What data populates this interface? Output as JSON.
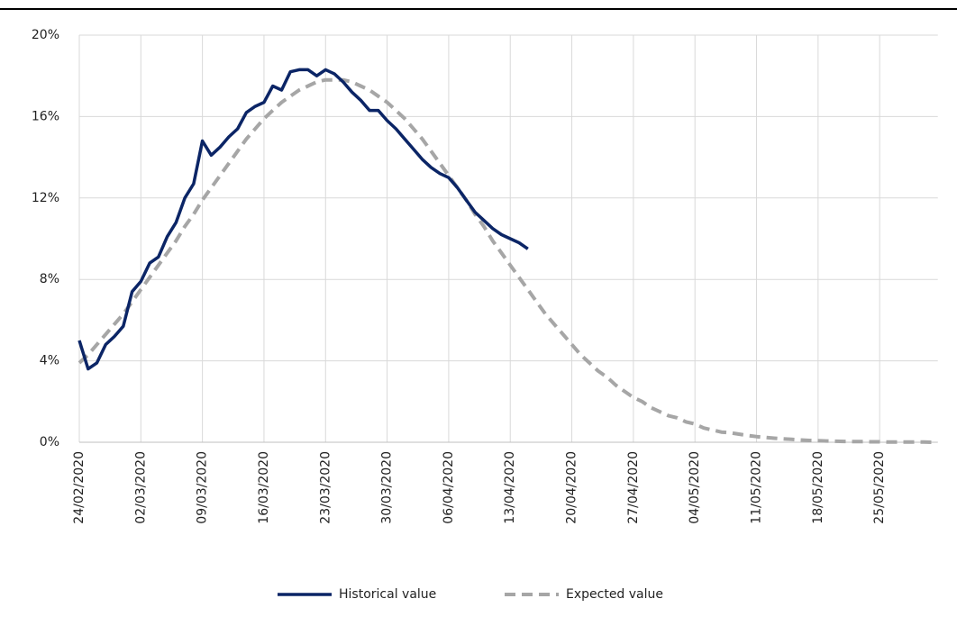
{
  "chart_data": {
    "type": "line",
    "x": [
      "24/02/2020",
      null,
      null,
      null,
      null,
      null,
      null,
      "02/03/2020",
      null,
      null,
      null,
      null,
      null,
      null,
      "09/03/2020",
      null,
      null,
      null,
      null,
      null,
      null,
      "16/03/2020",
      null,
      null,
      null,
      null,
      null,
      null,
      "23/03/2020",
      null,
      null,
      null,
      null,
      null,
      null,
      "30/03/2020",
      null,
      null,
      null,
      null,
      null,
      null,
      "06/04/2020",
      null,
      null,
      null,
      null,
      null,
      null,
      "13/04/2020",
      null,
      null,
      null,
      null,
      null,
      null,
      "20/04/2020",
      null,
      null,
      null,
      null,
      null,
      null,
      "27/04/2020",
      null,
      null,
      null,
      null,
      null,
      null,
      "04/05/2020",
      null,
      null,
      null,
      null,
      null,
      null,
      "11/05/2020",
      null,
      null,
      null,
      null,
      null,
      null,
      "18/05/2020",
      null,
      null,
      null,
      null,
      null,
      null,
      "25/05/2020",
      null,
      null,
      null,
      null,
      null,
      null
    ],
    "series": [
      {
        "name": "Historical value",
        "color": "#0b2566",
        "dash": false,
        "values": [
          5.0,
          3.6,
          3.9,
          4.8,
          5.2,
          5.7,
          7.4,
          7.9,
          8.8,
          9.1,
          10.1,
          10.8,
          12.0,
          12.7,
          14.8,
          14.1,
          14.5,
          15.0,
          15.4,
          16.2,
          16.5,
          16.7,
          17.5,
          17.3,
          18.2,
          18.3,
          18.3,
          18.0,
          18.3,
          18.1,
          17.7,
          17.2,
          16.8,
          16.3,
          16.3,
          15.8,
          15.4,
          14.9,
          14.4,
          13.9,
          13.5,
          13.2,
          13.0,
          12.5,
          11.9,
          11.3,
          10.9,
          10.5,
          10.2,
          10.0,
          9.8,
          9.5,
          null,
          null,
          null,
          null,
          null,
          null,
          null,
          null,
          null,
          null,
          null,
          null,
          null,
          null,
          null,
          null,
          null,
          null,
          null,
          null,
          null,
          null,
          null,
          null,
          null,
          null,
          null,
          null,
          null,
          null,
          null,
          null,
          null,
          null,
          null,
          null,
          null,
          null,
          null,
          null,
          null,
          null,
          null,
          null,
          null,
          null
        ]
      },
      {
        "name": "Expected value",
        "color": "#a6a6a6",
        "dash": true,
        "values": [
          3.9,
          4.3,
          4.8,
          5.3,
          5.8,
          6.3,
          6.9,
          7.5,
          8.1,
          8.7,
          9.3,
          9.9,
          10.6,
          11.2,
          11.9,
          12.5,
          13.1,
          13.7,
          14.3,
          14.9,
          15.4,
          15.9,
          16.3,
          16.7,
          17.0,
          17.3,
          17.5,
          17.7,
          17.8,
          17.8,
          17.8,
          17.7,
          17.5,
          17.3,
          17.0,
          16.7,
          16.3,
          15.9,
          15.4,
          14.9,
          14.3,
          13.7,
          13.1,
          12.5,
          11.9,
          11.2,
          10.6,
          9.9,
          9.3,
          8.7,
          8.1,
          7.5,
          6.9,
          6.3,
          5.8,
          5.3,
          4.8,
          4.3,
          3.9,
          3.5,
          3.2,
          2.8,
          2.5,
          2.2,
          2.0,
          1.7,
          1.5,
          1.3,
          1.2,
          1.0,
          0.9,
          0.7,
          0.6,
          0.5,
          0.47,
          0.4,
          0.33,
          0.28,
          0.24,
          0.2,
          0.17,
          0.14,
          0.11,
          0.09,
          0.08,
          0.06,
          0.05,
          0.04,
          0.03,
          0.03,
          0.02,
          0.02,
          0.01,
          0.01,
          0.01,
          0.01,
          0.01,
          0
        ]
      }
    ],
    "ylim": [
      0,
      20
    ],
    "yticks": [
      {
        "value": 0,
        "label": "0%"
      },
      {
        "value": 4,
        "label": "4%"
      },
      {
        "value": 8,
        "label": "8%"
      },
      {
        "value": 12,
        "label": "12%"
      },
      {
        "value": 16,
        "label": "16%"
      },
      {
        "value": 20,
        "label": "20%"
      }
    ],
    "grid": true,
    "legend": "bottom"
  }
}
